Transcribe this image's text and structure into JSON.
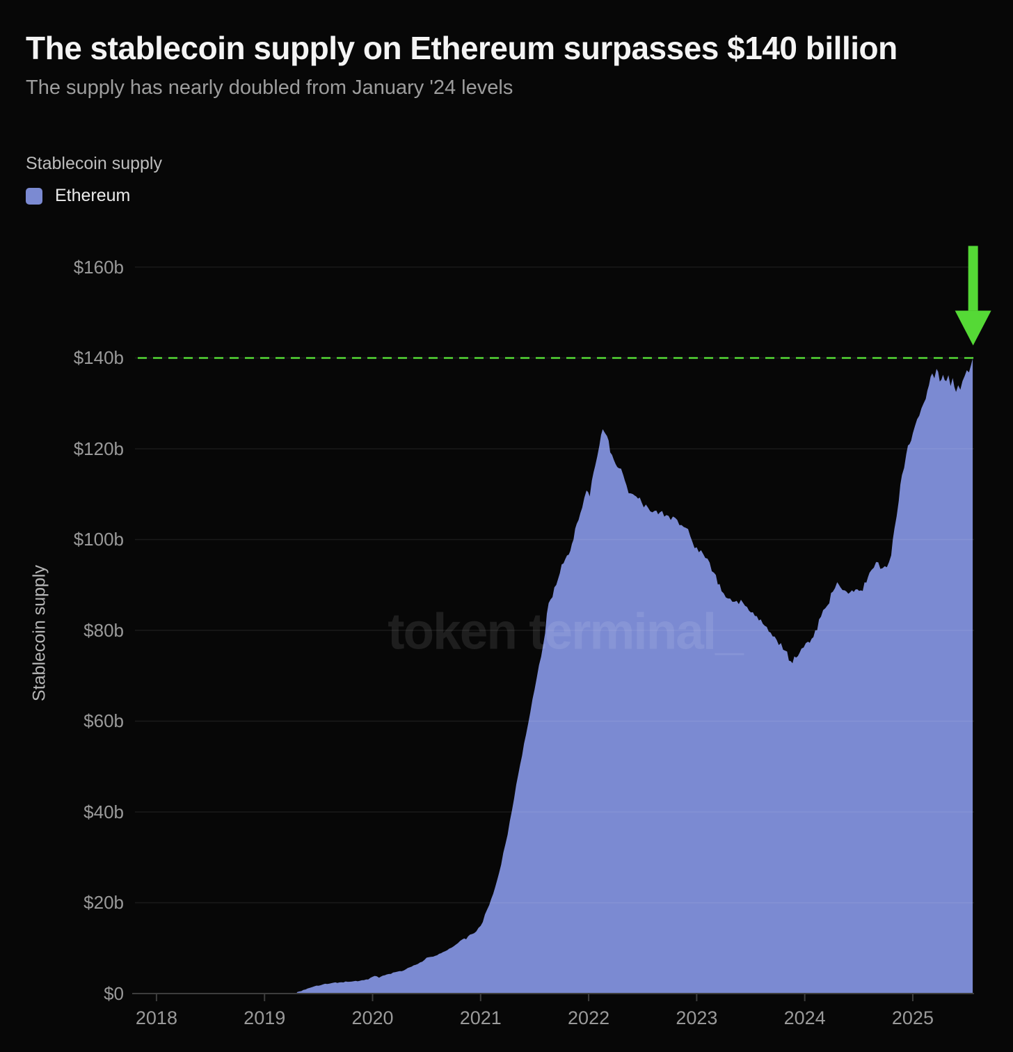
{
  "header": {
    "title": "The stablecoin supply on Ethereum surpasses $140 billion",
    "subtitle": "The supply has nearly doubled from January '24 levels"
  },
  "legend": {
    "group_label": "Stablecoin supply",
    "items": [
      {
        "label": "Ethereum",
        "color": "#7b8ad2"
      }
    ]
  },
  "watermark": "token terminal_",
  "colors": {
    "background": "#070707",
    "area": "#7b8ad2",
    "accent_green": "#55d936",
    "grid": "rgba(255,255,255,0.08)",
    "axis": "#3d3d3d",
    "tick_label": "#9a9a9a"
  },
  "chart_data": {
    "type": "area",
    "title": "The stablecoin supply on Ethereum surpasses $140 billion",
    "subtitle": "The supply has nearly doubled from January '24 levels",
    "ylabel": "Stablecoin supply",
    "xlabel": "",
    "x_unit": "year",
    "grid": true,
    "legend_position": "top-left",
    "ylim": [
      0,
      165.2
    ],
    "xlim": [
      2017.775,
      2025.567
    ],
    "y_ticks": [
      {
        "value": 0,
        "label": "$0"
      },
      {
        "value": 20,
        "label": "$20b"
      },
      {
        "value": 40,
        "label": "$40b"
      },
      {
        "value": 60,
        "label": "$60b"
      },
      {
        "value": 80,
        "label": "$80b"
      },
      {
        "value": 100,
        "label": "$100b"
      },
      {
        "value": 120,
        "label": "$120b"
      },
      {
        "value": 140,
        "label": "$140b"
      },
      {
        "value": 160,
        "label": "$160b"
      }
    ],
    "x_ticks": [
      {
        "value": 2018,
        "label": "2018"
      },
      {
        "value": 2019,
        "label": "2019"
      },
      {
        "value": 2020,
        "label": "2020"
      },
      {
        "value": 2021,
        "label": "2021"
      },
      {
        "value": 2022,
        "label": "2022"
      },
      {
        "value": 2023,
        "label": "2023"
      },
      {
        "value": 2024,
        "label": "2024"
      },
      {
        "value": 2025,
        "label": "2025"
      }
    ],
    "reference_line": {
      "value": 140,
      "style": "dashed",
      "color": "#55d936",
      "arrow_down": true
    },
    "series": [
      {
        "name": "Ethereum",
        "color": "#7b8ad2",
        "unit": "billion USD",
        "points": [
          [
            2019.3,
            0.3
          ],
          [
            2019.38,
            0.9
          ],
          [
            2019.46,
            1.6
          ],
          [
            2019.54,
            2.0
          ],
          [
            2019.62,
            2.3
          ],
          [
            2019.71,
            2.5
          ],
          [
            2019.79,
            2.6
          ],
          [
            2019.88,
            2.8
          ],
          [
            2019.96,
            3.1
          ],
          [
            2020.02,
            3.9
          ],
          [
            2020.06,
            3.5
          ],
          [
            2020.13,
            4.2
          ],
          [
            2020.21,
            4.7
          ],
          [
            2020.29,
            5.1
          ],
          [
            2020.38,
            6.2
          ],
          [
            2020.46,
            7.0
          ],
          [
            2020.5,
            7.9
          ],
          [
            2020.58,
            8.3
          ],
          [
            2020.67,
            9.3
          ],
          [
            2020.75,
            10.4
          ],
          [
            2020.83,
            11.9
          ],
          [
            2020.92,
            13.1
          ],
          [
            2021.0,
            14.9
          ],
          [
            2021.08,
            19.5
          ],
          [
            2021.17,
            26.5
          ],
          [
            2021.25,
            35.0
          ],
          [
            2021.33,
            46.0
          ],
          [
            2021.42,
            57.0
          ],
          [
            2021.5,
            67.0
          ],
          [
            2021.58,
            77.0
          ],
          [
            2021.63,
            86.0
          ],
          [
            2021.7,
            90.0
          ],
          [
            2021.75,
            94.5
          ],
          [
            2021.8,
            96.5
          ],
          [
            2021.83,
            97.5
          ],
          [
            2021.86,
            100.0
          ],
          [
            2021.89,
            103.5
          ],
          [
            2021.94,
            107.0
          ],
          [
            2021.98,
            110.8
          ],
          [
            2022.01,
            109.5
          ],
          [
            2022.03,
            113.0
          ],
          [
            2022.06,
            116.2
          ],
          [
            2022.1,
            120.8
          ],
          [
            2022.13,
            124.3
          ],
          [
            2022.17,
            122.8
          ],
          [
            2022.2,
            119.2
          ],
          [
            2022.25,
            116.6
          ],
          [
            2022.28,
            115.7
          ],
          [
            2022.32,
            114.2
          ],
          [
            2022.35,
            112.0
          ],
          [
            2022.37,
            110.2
          ],
          [
            2022.41,
            110.0
          ],
          [
            2022.44,
            109.5
          ],
          [
            2022.49,
            108.2
          ],
          [
            2022.55,
            107.0
          ],
          [
            2022.61,
            106.3
          ],
          [
            2022.66,
            106.0
          ],
          [
            2022.72,
            105.4
          ],
          [
            2022.76,
            104.3
          ],
          [
            2022.8,
            104.8
          ],
          [
            2022.86,
            103.2
          ],
          [
            2022.92,
            102.3
          ],
          [
            2022.96,
            99.5
          ],
          [
            2023.0,
            98.3
          ],
          [
            2023.06,
            96.8
          ],
          [
            2023.1,
            95.8
          ],
          [
            2023.16,
            92.7
          ],
          [
            2023.23,
            88.6
          ],
          [
            2023.31,
            87.0
          ],
          [
            2023.37,
            86.5
          ],
          [
            2023.43,
            86.0
          ],
          [
            2023.52,
            84.0
          ],
          [
            2023.63,
            81.0
          ],
          [
            2023.74,
            77.9
          ],
          [
            2023.82,
            75.5
          ],
          [
            2023.87,
            73.2
          ],
          [
            2023.92,
            74.0
          ],
          [
            2023.97,
            76.0
          ],
          [
            2024.03,
            77.5
          ],
          [
            2024.08,
            78.5
          ],
          [
            2024.15,
            83.0
          ],
          [
            2024.21,
            85.5
          ],
          [
            2024.26,
            88.5
          ],
          [
            2024.3,
            90.6
          ],
          [
            2024.33,
            89.5
          ],
          [
            2024.37,
            88.8
          ],
          [
            2024.42,
            88.4
          ],
          [
            2024.47,
            89.0
          ],
          [
            2024.52,
            88.8
          ],
          [
            2024.57,
            90.5
          ],
          [
            2024.6,
            92.7
          ],
          [
            2024.64,
            93.8
          ],
          [
            2024.68,
            95.0
          ],
          [
            2024.72,
            93.7
          ],
          [
            2024.76,
            93.9
          ],
          [
            2024.8,
            96.5
          ],
          [
            2024.83,
            102.4
          ],
          [
            2024.87,
            108.5
          ],
          [
            2024.9,
            114.2
          ],
          [
            2024.94,
            118.8
          ],
          [
            2024.97,
            121.0
          ],
          [
            2025.0,
            123.4
          ],
          [
            2025.04,
            126.5
          ],
          [
            2025.08,
            128.9
          ],
          [
            2025.12,
            131.0
          ],
          [
            2025.15,
            134.0
          ],
          [
            2025.18,
            136.6
          ],
          [
            2025.2,
            135.5
          ],
          [
            2025.22,
            137.6
          ],
          [
            2025.25,
            134.8
          ],
          [
            2025.28,
            136.3
          ],
          [
            2025.31,
            134.9
          ],
          [
            2025.33,
            136.2
          ],
          [
            2025.35,
            133.8
          ],
          [
            2025.37,
            135.6
          ],
          [
            2025.4,
            132.5
          ],
          [
            2025.42,
            134.0
          ],
          [
            2025.44,
            133.0
          ],
          [
            2025.46,
            134.9
          ],
          [
            2025.48,
            136.0
          ],
          [
            2025.5,
            137.3
          ],
          [
            2025.52,
            136.8
          ],
          [
            2025.54,
            138.5
          ],
          [
            2025.555,
            139.9
          ]
        ]
      }
    ]
  }
}
